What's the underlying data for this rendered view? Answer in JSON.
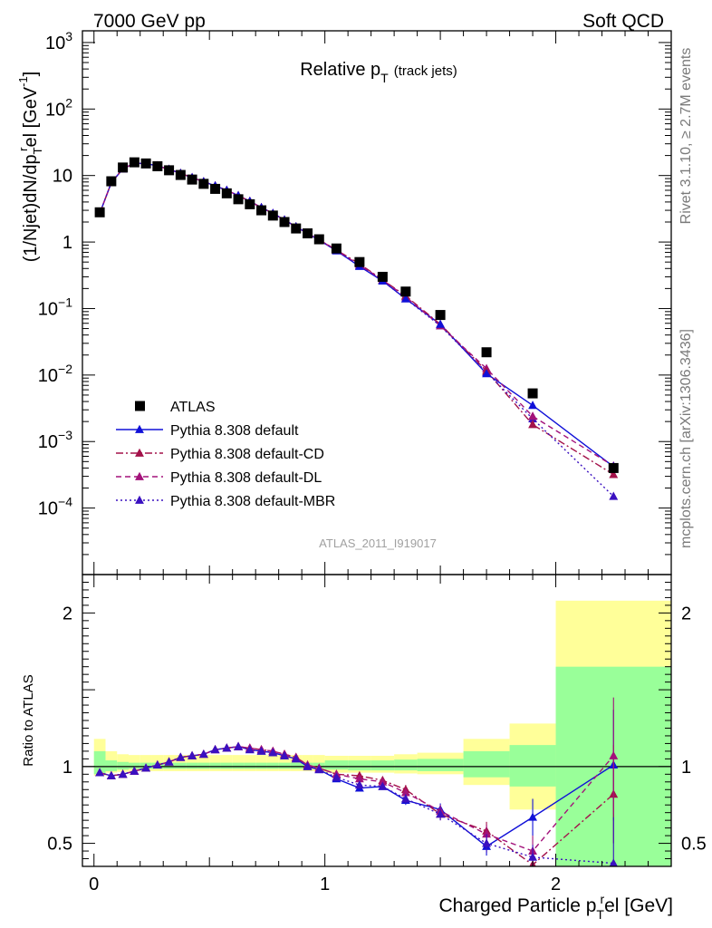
{
  "header": {
    "left": "7000 GeV pp",
    "right": "Soft QCD"
  },
  "side_labels": {
    "rivet": "Rivet 3.1.10, ≥ 2.7M events",
    "mcplots": "mcplots.cern.ch [arXiv:1306.3436]"
  },
  "chart_data": [
    {
      "type": "scatter",
      "panel": "main",
      "title": "Relative p",
      "title_sub": "T",
      "title_suffix": "(track jets)",
      "ylabel": "(1/Njet)dN/dp",
      "ylabel_sub": "T",
      "ylabel_sup": "r",
      "ylabel_suffix": "el [GeV",
      "ylabel_unit_sup": "-1",
      "ylabel_end": "]",
      "yscale": "log",
      "ylim": [
        1e-05,
        1500
      ],
      "xlim": [
        -0.05,
        2.5
      ],
      "ytick_labels": [
        {
          "v": 0.0001,
          "base": "10",
          "exp": "−4"
        },
        {
          "v": 0.001,
          "base": "10",
          "exp": "−3"
        },
        {
          "v": 0.01,
          "base": "10",
          "exp": "−2"
        },
        {
          "v": 0.1,
          "base": "10",
          "exp": "−1"
        },
        {
          "v": 1,
          "base": "1",
          "exp": ""
        },
        {
          "v": 10,
          "base": "10",
          "exp": ""
        },
        {
          "v": 100,
          "base": "10",
          "exp": "2"
        },
        {
          "v": 1000,
          "base": "10",
          "exp": "3"
        }
      ],
      "legend_position": "lower-left",
      "watermark": "ATLAS_2011_I919017",
      "x": [
        0.025,
        0.075,
        0.125,
        0.175,
        0.225,
        0.275,
        0.325,
        0.375,
        0.425,
        0.475,
        0.525,
        0.575,
        0.625,
        0.675,
        0.725,
        0.775,
        0.825,
        0.875,
        0.925,
        0.975,
        1.05,
        1.15,
        1.25,
        1.35,
        1.5,
        1.7,
        1.9,
        2.25
      ],
      "series": [
        {
          "name": "ATLAS",
          "color": "#000000",
          "marker": "square",
          "line": "none",
          "values": [
            2.8,
            8.2,
            13.2,
            15.8,
            15.2,
            13.8,
            12.0,
            10.2,
            8.7,
            7.5,
            6.3,
            5.4,
            4.4,
            3.7,
            3.0,
            2.5,
            2.0,
            1.6,
            1.35,
            1.1,
            0.8,
            0.5,
            0.3,
            0.18,
            0.08,
            0.022,
            0.0053,
            0.0004
          ]
        },
        {
          "name": "Pythia 8.308 default",
          "color": "#1010d8",
          "marker": "triangle",
          "line": "solid",
          "values": [
            2.7,
            7.8,
            12.6,
            15.3,
            15.1,
            14.0,
            12.4,
            10.8,
            9.3,
            8.1,
            7.0,
            6.0,
            5.0,
            4.1,
            3.3,
            2.7,
            2.15,
            1.7,
            1.35,
            1.07,
            0.74,
            0.43,
            0.26,
            0.14,
            0.058,
            0.0105,
            0.0035,
            0.00042
          ]
        },
        {
          "name": "Pythia 8.308 default-CD",
          "color": "#a3124a",
          "marker": "triangle",
          "line": "dashdot",
          "values": [
            2.7,
            7.8,
            12.6,
            15.3,
            15.1,
            14.0,
            12.4,
            10.8,
            9.3,
            8.1,
            7.0,
            6.0,
            5.0,
            4.1,
            3.3,
            2.7,
            2.15,
            1.7,
            1.35,
            1.08,
            0.76,
            0.47,
            0.27,
            0.155,
            0.058,
            0.0115,
            0.0018,
            0.00032
          ]
        },
        {
          "name": "Pythia 8.308 default-DL",
          "color": "#a3127a",
          "marker": "triangle",
          "line": "dashed",
          "values": [
            2.7,
            7.8,
            12.6,
            15.3,
            15.1,
            14.0,
            12.4,
            10.8,
            9.3,
            8.1,
            7.0,
            6.0,
            5.0,
            4.1,
            3.3,
            2.7,
            2.15,
            1.7,
            1.35,
            1.08,
            0.75,
            0.45,
            0.27,
            0.15,
            0.055,
            0.0125,
            0.0024,
            0.00043
          ]
        },
        {
          "name": "Pythia 8.308 default-MBR",
          "color": "#3a10c0",
          "marker": "triangle",
          "line": "dotted",
          "values": [
            2.7,
            7.8,
            12.6,
            15.3,
            15.1,
            14.0,
            12.4,
            10.8,
            9.3,
            8.1,
            7.0,
            6.0,
            5.0,
            4.1,
            3.3,
            2.7,
            2.15,
            1.7,
            1.35,
            1.07,
            0.74,
            0.44,
            0.26,
            0.14,
            0.055,
            0.011,
            0.0022,
            0.00015
          ]
        }
      ]
    },
    {
      "type": "scatter",
      "panel": "ratio",
      "ylabel": "Ratio to ATLAS",
      "xlabel": "Charged Particle p",
      "xlabel_sub": "T",
      "xlabel_sup": "r",
      "xlabel_suffix": "el [GeV]",
      "xlim": [
        -0.05,
        2.5
      ],
      "ylim": [
        0.35,
        2.25
      ],
      "xticks": [
        0,
        1,
        2
      ],
      "xtick_labels": [
        "0",
        "1",
        "2"
      ],
      "yticks": [
        0.5,
        1,
        2
      ],
      "ytick_labels": [
        "0.5",
        "1",
        "2"
      ],
      "bins": [
        [
          0,
          0.05
        ],
        [
          0.05,
          0.1
        ],
        [
          0.1,
          0.15
        ],
        [
          0.15,
          0.2
        ],
        [
          0.2,
          0.25
        ],
        [
          0.25,
          0.3
        ],
        [
          0.3,
          0.35
        ],
        [
          0.35,
          0.4
        ],
        [
          0.4,
          0.45
        ],
        [
          0.45,
          0.5
        ],
        [
          0.5,
          0.55
        ],
        [
          0.55,
          0.6
        ],
        [
          0.6,
          0.65
        ],
        [
          0.65,
          0.7
        ],
        [
          0.7,
          0.75
        ],
        [
          0.75,
          0.8
        ],
        [
          0.8,
          0.85
        ],
        [
          0.85,
          0.9
        ],
        [
          0.9,
          0.95
        ],
        [
          0.95,
          1.0
        ],
        [
          1.0,
          1.1
        ],
        [
          1.1,
          1.2
        ],
        [
          1.2,
          1.3
        ],
        [
          1.3,
          1.4
        ],
        [
          1.4,
          1.6
        ],
        [
          1.6,
          1.8
        ],
        [
          1.8,
          2.0
        ],
        [
          2.0,
          2.5
        ]
      ],
      "band_stat_lo": [
        0.95,
        0.97,
        0.98,
        0.985,
        0.985,
        0.985,
        0.985,
        0.985,
        0.985,
        0.985,
        0.985,
        0.985,
        0.985,
        0.985,
        0.985,
        0.985,
        0.985,
        0.985,
        0.985,
        0.985,
        0.98,
        0.975,
        0.975,
        0.975,
        0.97,
        0.93,
        0.87,
        0.35
      ],
      "band_stat_hi": [
        1.1,
        1.04,
        1.03,
        1.025,
        1.025,
        1.025,
        1.025,
        1.025,
        1.025,
        1.025,
        1.025,
        1.025,
        1.025,
        1.025,
        1.025,
        1.025,
        1.025,
        1.025,
        1.025,
        1.025,
        1.04,
        1.04,
        1.04,
        1.045,
        1.05,
        1.1,
        1.14,
        1.65
      ],
      "band_tot_lo": [
        0.94,
        0.96,
        0.965,
        0.97,
        0.97,
        0.97,
        0.97,
        0.97,
        0.97,
        0.97,
        0.97,
        0.97,
        0.97,
        0.97,
        0.97,
        0.97,
        0.97,
        0.97,
        0.97,
        0.97,
        0.96,
        0.96,
        0.96,
        0.955,
        0.95,
        0.88,
        0.72,
        0.35
      ],
      "band_tot_hi": [
        1.18,
        1.1,
        1.08,
        1.075,
        1.075,
        1.075,
        1.075,
        1.075,
        1.075,
        1.075,
        1.075,
        1.075,
        1.075,
        1.075,
        1.075,
        1.075,
        1.075,
        1.075,
        1.075,
        1.075,
        1.07,
        1.07,
        1.07,
        1.08,
        1.09,
        1.18,
        1.28,
        2.08
      ],
      "x": [
        0.025,
        0.075,
        0.125,
        0.175,
        0.225,
        0.275,
        0.325,
        0.375,
        0.425,
        0.475,
        0.525,
        0.575,
        0.625,
        0.675,
        0.725,
        0.775,
        0.825,
        0.875,
        0.925,
        0.975,
        1.05,
        1.15,
        1.25,
        1.35,
        1.5,
        1.7,
        1.9,
        2.25
      ],
      "series": [
        {
          "name": "Pythia 8.308 default",
          "color": "#1010d8",
          "line": "solid",
          "values": [
            0.96,
            0.94,
            0.95,
            0.97,
            0.99,
            1.01,
            1.03,
            1.06,
            1.07,
            1.08,
            1.11,
            1.12,
            1.13,
            1.11,
            1.1,
            1.09,
            1.07,
            1.05,
            1.0,
            0.98,
            0.92,
            0.86,
            0.87,
            0.78,
            0.72,
            0.48,
            0.67,
            1.01
          ],
          "errors": [
            0.01,
            0.01,
            0.01,
            0.01,
            0.01,
            0.01,
            0.01,
            0.01,
            0.01,
            0.01,
            0.01,
            0.01,
            0.01,
            0.01,
            0.01,
            0.01,
            0.01,
            0.01,
            0.01,
            0.01,
            0.015,
            0.02,
            0.02,
            0.03,
            0.04,
            0.06,
            0.12,
            0.36
          ]
        },
        {
          "name": "Pythia 8.308 default-CD",
          "color": "#a3124a",
          "line": "dashdot",
          "values": [
            0.96,
            0.94,
            0.95,
            0.97,
            0.99,
            1.01,
            1.03,
            1.06,
            1.07,
            1.08,
            1.11,
            1.12,
            1.13,
            1.12,
            1.11,
            1.1,
            1.08,
            1.06,
            1.01,
            0.99,
            0.95,
            0.94,
            0.91,
            0.85,
            0.69,
            0.58,
            0.36,
            0.82
          ],
          "errors": [
            0.01,
            0.01,
            0.01,
            0.01,
            0.01,
            0.01,
            0.01,
            0.01,
            0.01,
            0.01,
            0.01,
            0.01,
            0.01,
            0.01,
            0.01,
            0.01,
            0.01,
            0.01,
            0.01,
            0.01,
            0.015,
            0.02,
            0.02,
            0.03,
            0.04,
            0.06,
            0.08,
            0.32
          ]
        },
        {
          "name": "Pythia 8.308 default-DL",
          "color": "#a3127a",
          "line": "dashed",
          "values": [
            0.96,
            0.94,
            0.95,
            0.97,
            0.99,
            1.01,
            1.03,
            1.06,
            1.07,
            1.08,
            1.11,
            1.12,
            1.13,
            1.12,
            1.11,
            1.1,
            1.08,
            1.06,
            1.01,
            0.99,
            0.95,
            0.92,
            0.9,
            0.83,
            0.71,
            0.56,
            0.45,
            1.07
          ],
          "errors": [
            0.01,
            0.01,
            0.01,
            0.01,
            0.01,
            0.01,
            0.01,
            0.01,
            0.01,
            0.01,
            0.01,
            0.01,
            0.01,
            0.01,
            0.01,
            0.01,
            0.01,
            0.01,
            0.01,
            0.01,
            0.015,
            0.02,
            0.02,
            0.03,
            0.04,
            0.06,
            0.1,
            0.38
          ]
        },
        {
          "name": "Pythia 8.308 default-MBR",
          "color": "#3a10c0",
          "line": "dotted",
          "values": [
            0.96,
            0.94,
            0.95,
            0.97,
            0.99,
            1.01,
            1.03,
            1.06,
            1.07,
            1.08,
            1.11,
            1.12,
            1.13,
            1.11,
            1.1,
            1.09,
            1.07,
            1.05,
            1.0,
            0.98,
            0.93,
            0.88,
            0.87,
            0.79,
            0.69,
            0.5,
            0.41,
            0.37
          ],
          "errors": [
            0.01,
            0.01,
            0.01,
            0.01,
            0.01,
            0.01,
            0.01,
            0.01,
            0.01,
            0.01,
            0.01,
            0.01,
            0.01,
            0.01,
            0.01,
            0.01,
            0.01,
            0.01,
            0.01,
            0.01,
            0.015,
            0.02,
            0.02,
            0.03,
            0.04,
            0.06,
            0.08,
            0.3
          ]
        }
      ]
    }
  ]
}
